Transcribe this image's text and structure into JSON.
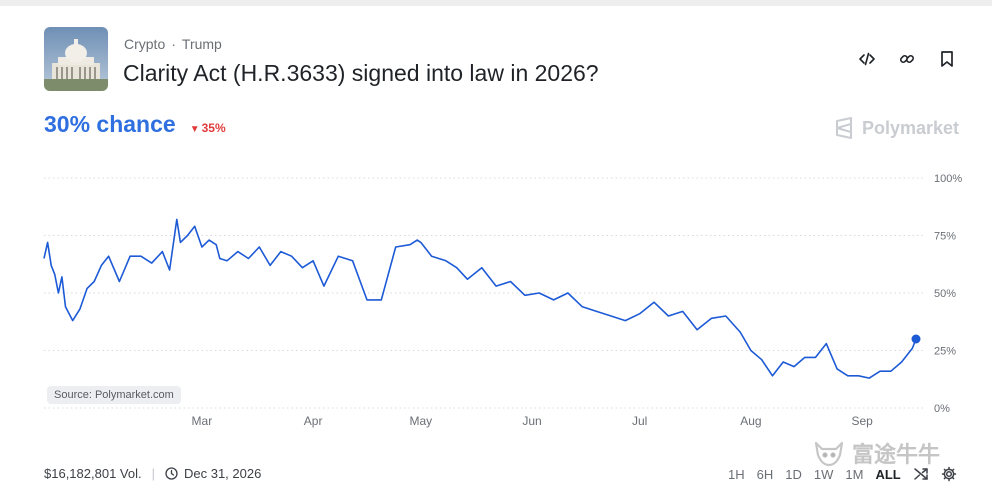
{
  "market": {
    "breadcrumb": [
      "Crypto",
      "Trump"
    ],
    "title": "Clarity Act (H.R.3633) signed into law in 2026?",
    "chance": "30% chance",
    "change": "35%",
    "brand": "Polymarket",
    "source": "Source: Polymarket.com",
    "volume": "$16,182,801 Vol.",
    "end_date": "Dec 31, 2026"
  },
  "ranges": [
    "1H",
    "6H",
    "1D",
    "1W",
    "1M",
    "ALL"
  ],
  "active_range": "ALL",
  "watermark": "富途牛牛",
  "colors": {
    "accent": "#2f6fe0",
    "line": "#1d5ad6",
    "down": "#e23b3b"
  },
  "icons": [
    "embed-icon",
    "link-icon",
    "bookmark-icon",
    "clock-icon",
    "shuffle-icon",
    "gear-icon"
  ],
  "chart_data": {
    "type": "line",
    "ylim": [
      0,
      100
    ],
    "yticks": [
      "100%",
      "75%",
      "50%",
      "25%",
      "0%"
    ],
    "ytick_values": [
      100,
      75,
      50,
      25,
      0
    ],
    "xticks": [
      "Mar",
      "Apr",
      "May",
      "Jun",
      "Jul",
      "Aug",
      "Sep"
    ],
    "xtick_dates": [
      "2025-03-01",
      "2025-04-01",
      "2025-05-01",
      "2025-06-01",
      "2025-07-01",
      "2025-08-01",
      "2025-09-01"
    ],
    "grid": true,
    "series": [
      {
        "x": [
          "2025-01-16",
          "2025-01-17",
          "2025-01-18",
          "2025-01-19",
          "2025-01-20",
          "2025-01-21",
          "2025-01-22",
          "2025-01-24",
          "2025-01-26",
          "2025-01-28",
          "2025-01-30",
          "2025-02-01",
          "2025-02-03",
          "2025-02-06",
          "2025-02-09",
          "2025-02-12",
          "2025-02-15",
          "2025-02-18",
          "2025-02-20",
          "2025-02-22",
          "2025-02-23",
          "2025-02-25",
          "2025-02-27",
          "2025-03-01",
          "2025-03-03",
          "2025-03-05",
          "2025-03-06",
          "2025-03-08",
          "2025-03-11",
          "2025-03-14",
          "2025-03-17",
          "2025-03-20",
          "2025-03-23",
          "2025-03-26",
          "2025-03-29",
          "2025-04-01",
          "2025-04-04",
          "2025-04-08",
          "2025-04-12",
          "2025-04-16",
          "2025-04-20",
          "2025-04-24",
          "2025-04-28",
          "2025-04-30",
          "2025-05-01",
          "2025-05-04",
          "2025-05-08",
          "2025-05-11",
          "2025-05-14",
          "2025-05-18",
          "2025-05-22",
          "2025-05-26",
          "2025-05-30",
          "2025-06-03",
          "2025-06-07",
          "2025-06-11",
          "2025-06-15",
          "2025-06-19",
          "2025-06-23",
          "2025-06-27",
          "2025-07-01",
          "2025-07-05",
          "2025-07-09",
          "2025-07-13",
          "2025-07-17",
          "2025-07-21",
          "2025-07-25",
          "2025-07-29",
          "2025-08-01",
          "2025-08-04",
          "2025-08-07",
          "2025-08-10",
          "2025-08-13",
          "2025-08-16",
          "2025-08-19",
          "2025-08-22",
          "2025-08-25",
          "2025-08-28",
          "2025-08-31",
          "2025-09-03",
          "2025-09-06",
          "2025-09-09",
          "2025-09-12",
          "2025-09-15",
          "2025-09-16"
        ],
        "y": [
          65,
          72,
          62,
          58,
          50,
          57,
          44,
          38,
          43,
          52,
          55,
          62,
          66,
          55,
          66,
          66,
          63,
          68,
          60,
          82,
          72,
          75,
          79,
          70,
          73,
          71,
          65,
          64,
          68,
          65,
          70,
          62,
          68,
          66,
          61,
          64,
          53,
          66,
          64,
          47,
          47,
          70,
          71,
          73,
          72,
          66,
          64,
          61,
          56,
          61,
          53,
          55,
          49,
          50,
          47,
          50,
          44,
          42,
          40,
          38,
          41,
          46,
          40,
          42,
          34,
          39,
          40,
          33,
          25,
          21,
          14,
          20,
          18,
          22,
          22,
          28,
          17,
          14,
          14,
          13,
          16,
          16,
          20,
          26,
          30
        ]
      }
    ]
  }
}
